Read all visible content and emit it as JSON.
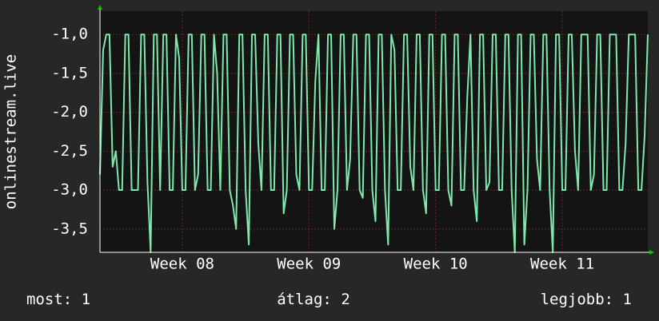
{
  "chart_data": {
    "type": "line",
    "y_label": "onlinestream.live",
    "color": "#7fe8ac",
    "grid": true,
    "xlim": [
      0,
      173
    ],
    "xticks": [
      {
        "value": 26,
        "label": "Week 08"
      },
      {
        "value": 66,
        "label": "Week 09"
      },
      {
        "value": 106,
        "label": "Week 10"
      },
      {
        "value": 146,
        "label": "Week 11"
      }
    ],
    "ylim": [
      -3.8,
      -0.7
    ],
    "yticks": [
      {
        "value": -1.0,
        "label": "-1,0"
      },
      {
        "value": -1.5,
        "label": "-1,5"
      },
      {
        "value": -2.0,
        "label": "-2,0"
      },
      {
        "value": -2.5,
        "label": "-2,5"
      },
      {
        "value": -3.0,
        "label": "-3,0"
      },
      {
        "value": -3.5,
        "label": "-3,5"
      }
    ],
    "values": [
      -2.8,
      -1.2,
      -1,
      -1,
      -2.7,
      -2.5,
      -3,
      -3,
      -1,
      -1,
      -3,
      -3,
      -3,
      -1,
      -1,
      -2.9,
      -3.8,
      -1,
      -1,
      -3,
      -1,
      -1,
      -3,
      -3,
      -1,
      -1.3,
      -3,
      -3,
      -1,
      -1,
      -3,
      -2.8,
      -1,
      -1,
      -3,
      -3,
      -1,
      -1.5,
      -3,
      -1,
      -1,
      -3,
      -3.2,
      -3.5,
      -1,
      -1,
      -3,
      -3.7,
      -1,
      -1,
      -2.4,
      -3,
      -1,
      -1,
      -3,
      -3,
      -1,
      -1,
      -3.3,
      -3,
      -1,
      -1,
      -2.8,
      -3,
      -1,
      -1,
      -3,
      -3,
      -1.6,
      -1,
      -3,
      -3,
      -1,
      -1,
      -3.5,
      -3,
      -1,
      -1,
      -3,
      -2.6,
      -1,
      -1,
      -3,
      -3.1,
      -1,
      -1,
      -3,
      -3.4,
      -1,
      -1,
      -3,
      -3.7,
      -1,
      -1.2,
      -3,
      -3,
      -1,
      -1,
      -2.7,
      -3,
      -1,
      -1,
      -3,
      -3.3,
      -1,
      -1,
      -3,
      -3,
      -1,
      -1,
      -3,
      -3.2,
      -1,
      -1,
      -3,
      -3,
      -1.8,
      -1,
      -3,
      -3.4,
      -1,
      -1,
      -3,
      -2.9,
      -1,
      -1,
      -3,
      -3,
      -1,
      -1,
      -3,
      -3.8,
      -1,
      -1,
      -3.7,
      -3,
      -1,
      -1,
      -2.6,
      -3,
      -1,
      -1,
      -3,
      -3.8,
      -1,
      -1,
      -3,
      -3,
      -1,
      -1,
      -2.5,
      -3,
      -1,
      -1,
      -1,
      -3,
      -2.8,
      -1,
      -1,
      -3,
      -3,
      -1,
      -1,
      -1,
      -3,
      -3,
      -2.4,
      -1,
      -1,
      -1,
      -3,
      -3,
      -2.3,
      -1
    ],
    "footer": [
      {
        "label": "most:",
        "value": 1
      },
      {
        "label": "átlag:",
        "value": 2
      },
      {
        "label": "legjobb:",
        "value": 1
      }
    ]
  }
}
